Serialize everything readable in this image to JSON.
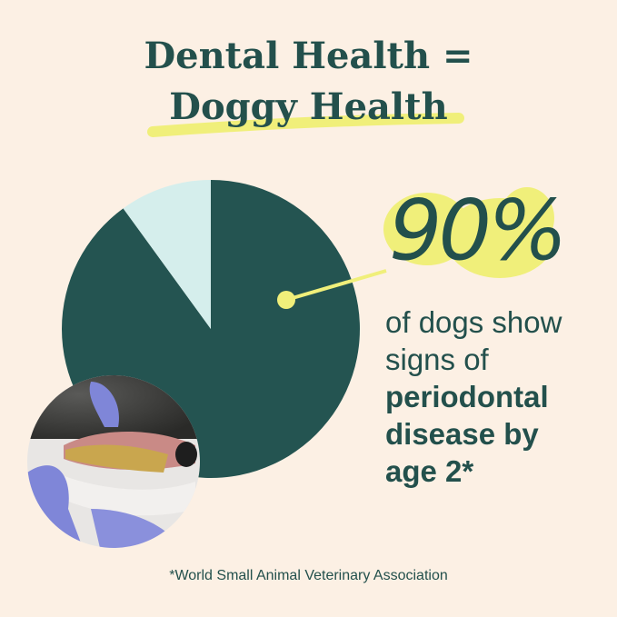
{
  "title": {
    "line1": "Dental Health =",
    "line2": "Doggy Health"
  },
  "chart_data": {
    "type": "pie",
    "values": [
      90,
      10
    ],
    "colors": [
      "#245451",
      "#d5eeec"
    ],
    "highlight_label": "90%"
  },
  "stat": {
    "line1": "of dogs show",
    "line2": "signs of",
    "bold1": "periodontal",
    "bold2": "disease by",
    "bold3": "age 2*"
  },
  "footnote": "*World Small Animal Veterinary Association",
  "colors": {
    "background": "#fcf0e4",
    "accent": "#f0ef7a",
    "text": "#23504c"
  }
}
